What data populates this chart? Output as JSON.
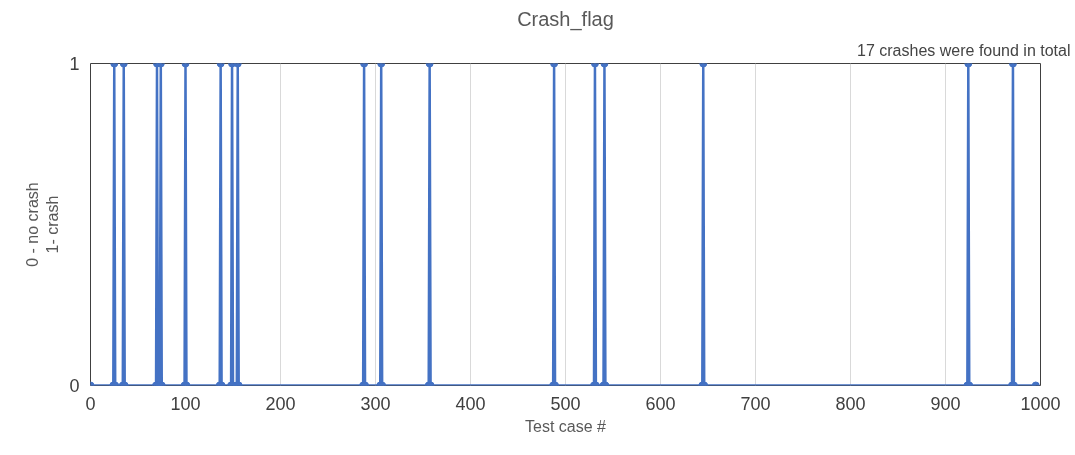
{
  "chart_data": {
    "type": "line",
    "title": "Crash_flag",
    "xlabel": "Test case #",
    "ylabel": "0 - no crash\n1- crash",
    "annotations": [
      "17 crashes were found in total"
    ],
    "series": [
      {
        "color": "#4472c4",
        "x": [
          0,
          24,
          25,
          26,
          34,
          35,
          36,
          69,
          70,
          71,
          73,
          74,
          75,
          99,
          100,
          101,
          136,
          137,
          138,
          148,
          149,
          150,
          154,
          155,
          156,
          287,
          288,
          289,
          305,
          306,
          307,
          356,
          357,
          358,
          487,
          488,
          489,
          530,
          531,
          532,
          540,
          541,
          542,
          644,
          645,
          646,
          923,
          924,
          925,
          970,
          971,
          972,
          995
        ],
        "values": [
          0,
          0,
          1,
          0,
          0,
          1,
          0,
          0,
          1,
          0,
          0,
          1,
          0,
          0,
          1,
          0,
          0,
          1,
          0,
          0,
          1,
          0,
          0,
          1,
          0,
          0,
          1,
          0,
          0,
          1,
          0,
          0,
          1,
          0,
          0,
          1,
          0,
          0,
          1,
          0,
          0,
          1,
          0,
          0,
          1,
          0,
          0,
          1,
          0,
          0,
          1,
          0,
          0
        ]
      }
    ],
    "xlim": [
      0,
      1000
    ],
    "xticks": [
      0,
      100,
      200,
      300,
      400,
      500,
      600,
      700,
      800,
      900,
      1000
    ],
    "ylim": [
      0,
      1
    ],
    "yticks": [
      0,
      1
    ],
    "grid": "x",
    "marker": "circle",
    "line_style": "solid"
  }
}
